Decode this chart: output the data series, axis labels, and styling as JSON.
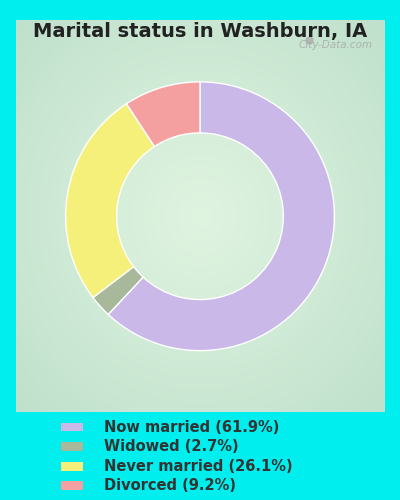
{
  "title": "Marital status in Washburn, IA",
  "slices": [
    61.9,
    2.7,
    26.1,
    9.2
  ],
  "labels": [
    "Now married (61.9%)",
    "Widowed (2.7%)",
    "Never married (26.1%)",
    "Divorced (9.2%)"
  ],
  "colors": [
    "#c9b8e8",
    "#a8b89a",
    "#f5f07a",
    "#f5a0a0"
  ],
  "outer_bg": "#00eeee",
  "chart_bg_left": "#c8e8d0",
  "chart_bg_right": "#e8f5e8",
  "chart_bg_top": "#d0eed8",
  "chart_bg_bottom": "#c0e8cc",
  "title_fontsize": 14,
  "legend_fontsize": 10.5,
  "donut_width": 0.38,
  "start_angle": 90,
  "watermark": "City-Data.com"
}
